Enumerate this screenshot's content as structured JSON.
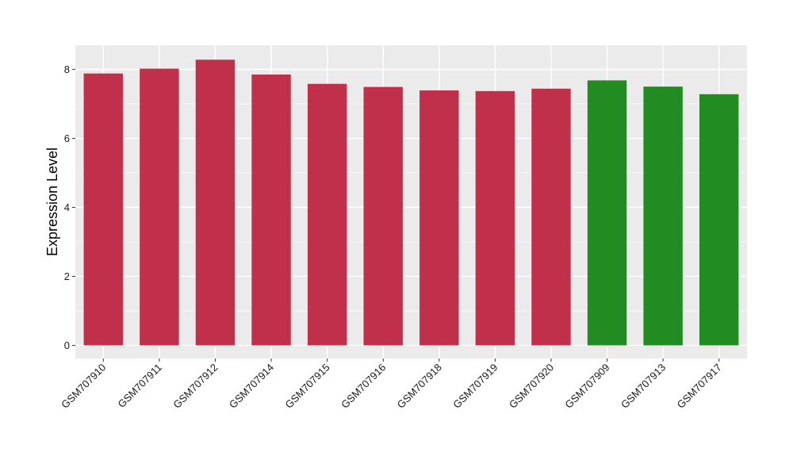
{
  "chart_data": {
    "type": "bar",
    "title": "",
    "xlabel": "",
    "ylabel": "Expression Level",
    "ylim": [
      -0.38,
      8.7
    ],
    "yticks": [
      0,
      2,
      4,
      6,
      8
    ],
    "yticks_labels": [
      "0",
      "2",
      "4",
      "6",
      "8"
    ],
    "grid": true,
    "categories": [
      "GSM707910",
      "GSM707911",
      "GSM707912",
      "GSM707914",
      "GSM707915",
      "GSM707916",
      "GSM707918",
      "GSM707919",
      "GSM707920",
      "GSM707909",
      "GSM707913",
      "GSM707917"
    ],
    "values": [
      7.88,
      8.02,
      8.28,
      7.85,
      7.58,
      7.49,
      7.39,
      7.37,
      7.44,
      7.68,
      7.5,
      7.28
    ],
    "bar_colors": [
      "#c1304a",
      "#c1304a",
      "#c1304a",
      "#c1304a",
      "#c1304a",
      "#c1304a",
      "#c1304a",
      "#c1304a",
      "#c1304a",
      "#228b22",
      "#228b22",
      "#228b22"
    ],
    "panel_background": "#ebebeb",
    "grid_color": "#ffffff"
  }
}
